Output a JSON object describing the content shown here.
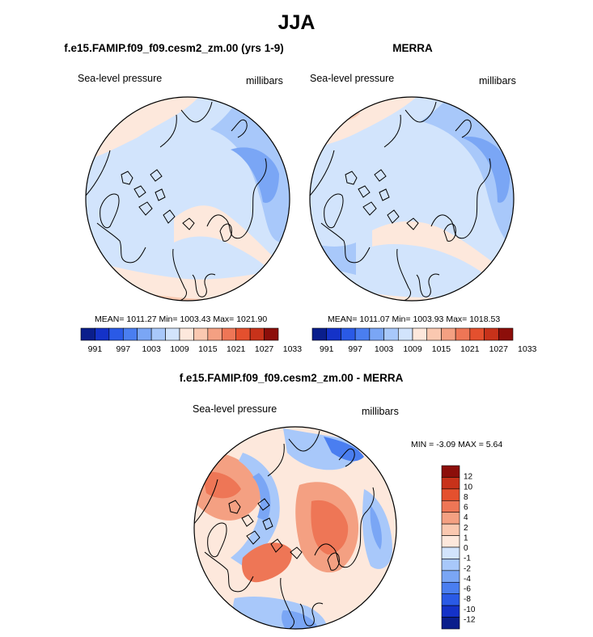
{
  "title": "JJA",
  "panels": [
    {
      "title": "f.e15.FAMIP.f09_f09.cesm2_zm.00 (yrs 1-9)",
      "left_label": "Sea-level pressure",
      "right_label": "millibars",
      "stats": "MEAN= 1011.27  Min= 1003.43  Max= 1021.90"
    },
    {
      "title": "MERRA",
      "left_label": "Sea-level pressure",
      "right_label": "millibars",
      "stats": "MEAN= 1011.07  Min= 1003.93  Max= 1018.53"
    },
    {
      "title": "f.e15.FAMIP.f09_f09.cesm2_zm.00 - MERRA",
      "left_label": "Sea-level pressure",
      "right_label": "millibars",
      "stats": "MIN =  -3.09 MAX =   5.64"
    }
  ],
  "colors": {
    "abs_scale": [
      "#0a1e8c",
      "#1432c8",
      "#2a5ae6",
      "#4a7ef0",
      "#7aa6f5",
      "#a8c8fa",
      "#d2e4fc",
      "#fde8dc",
      "#fac8b0",
      "#f4a082",
      "#ee7656",
      "#e4502e",
      "#c8321a",
      "#8c0e0a"
    ],
    "diff_scale": [
      "#0a1e8c",
      "#1432c8",
      "#2a5ae6",
      "#4a7ef0",
      "#7aa6f5",
      "#a8c8fa",
      "#d2e4fc",
      "#fde8dc",
      "#fac8b0",
      "#f4a082",
      "#ee7656",
      "#e4502e",
      "#c8321a",
      "#8c0e0a"
    ]
  },
  "chart_data": [
    {
      "type": "heatmap",
      "projection": "north polar stereographic",
      "title": "f.e15.FAMIP.f09_f09.cesm2_zm.00 (yrs 1-9)",
      "variable": "Sea-level pressure",
      "units": "millibars",
      "mean": 1011.27,
      "min": 1003.43,
      "max": 1021.9,
      "colorbar_ticks": [
        "991",
        "997",
        "1003",
        "1009",
        "1015",
        "1021",
        "1027",
        "1033"
      ]
    },
    {
      "type": "heatmap",
      "projection": "north polar stereographic",
      "title": "MERRA",
      "variable": "Sea-level pressure",
      "units": "millibars",
      "mean": 1011.07,
      "min": 1003.93,
      "max": 1018.53,
      "colorbar_ticks": [
        "991",
        "997",
        "1003",
        "1009",
        "1015",
        "1021",
        "1027",
        "1033"
      ]
    },
    {
      "type": "heatmap",
      "projection": "north polar stereographic",
      "title": "f.e15.FAMIP.f09_f09.cesm2_zm.00 - MERRA",
      "variable": "Sea-level pressure",
      "units": "millibars",
      "min": -3.09,
      "max": 5.64,
      "colorbar_ticks": [
        "12",
        "10",
        "8",
        "6",
        "4",
        "2",
        "1",
        "0",
        "-1",
        "-2",
        "-4",
        "-6",
        "-8",
        "-10",
        "-12"
      ]
    }
  ]
}
